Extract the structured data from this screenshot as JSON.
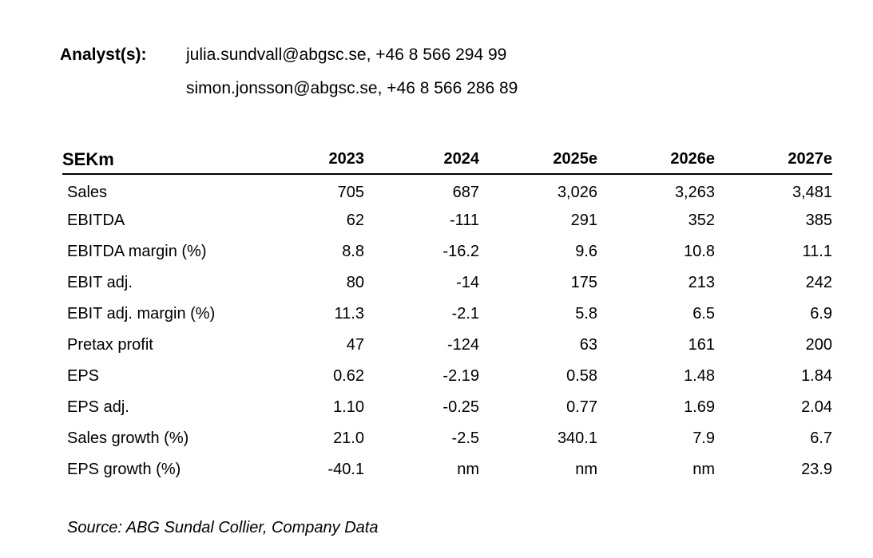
{
  "analysts": {
    "label": "Analyst(s):",
    "lines": [
      "julia.sundvall@abgsc.se, +46 8 566 294 99",
      "simon.jonsson@abgsc.se, +46 8 566 286 89"
    ]
  },
  "table": {
    "unit_label": "SEKm",
    "columns": [
      "2023",
      "2024",
      "2025e",
      "2026e",
      "2027e"
    ],
    "rows": [
      {
        "label": "Sales",
        "values": [
          "705",
          "687",
          "3,026",
          "3,263",
          "3,481"
        ]
      },
      {
        "label": "EBITDA",
        "values": [
          "62",
          "-111",
          "291",
          "352",
          "385"
        ]
      },
      {
        "label": "EBITDA margin (%)",
        "values": [
          "8.8",
          "-16.2",
          "9.6",
          "10.8",
          "11.1"
        ]
      },
      {
        "label": "EBIT adj.",
        "values": [
          "80",
          "-14",
          "175",
          "213",
          "242"
        ]
      },
      {
        "label": "EBIT adj. margin (%)",
        "values": [
          "11.3",
          "-2.1",
          "5.8",
          "6.5",
          "6.9"
        ]
      },
      {
        "label": "Pretax profit",
        "values": [
          "47",
          "-124",
          "63",
          "161",
          "200"
        ]
      },
      {
        "label": "EPS",
        "values": [
          "0.62",
          "-2.19",
          "0.58",
          "1.48",
          "1.84"
        ]
      },
      {
        "label": "EPS adj.",
        "values": [
          "1.10",
          "-0.25",
          "0.77",
          "1.69",
          "2.04"
        ]
      },
      {
        "label": "Sales growth (%)",
        "values": [
          "21.0",
          "-2.5",
          "340.1",
          "7.9",
          "6.7"
        ]
      },
      {
        "label": "EPS growth (%)",
        "values": [
          "-40.1",
          "nm",
          "nm",
          "nm",
          "23.9"
        ]
      }
    ]
  },
  "source": "Source: ABG Sundal Collier, Company Data",
  "colors": {
    "text": "#000000",
    "header_rule": "#000000",
    "background": "#ffffff"
  }
}
